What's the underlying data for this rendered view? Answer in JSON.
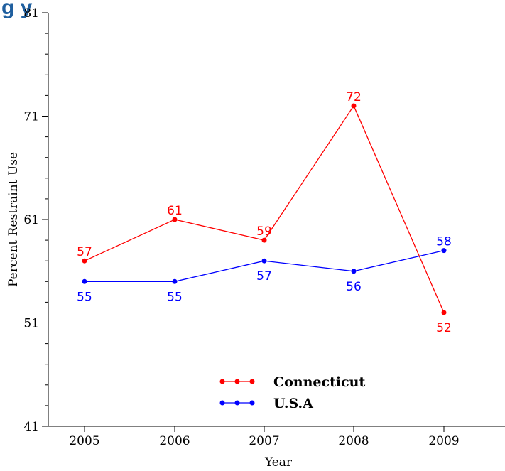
{
  "chart_data": {
    "type": "line",
    "title_partial": "g              y",
    "xlabel": "Year",
    "ylabel": "Percent Restraint Use",
    "x": [
      "2005",
      "2006",
      "2007",
      "2008",
      "2009"
    ],
    "y_ticks": [
      "41",
      "51",
      "61",
      "71",
      "81"
    ],
    "ylim": [
      41,
      81
    ],
    "y_minor_step": 2,
    "grid": false,
    "legend_position": "bottom-center",
    "series": [
      {
        "name": "Connecticut",
        "color": "#ff0000",
        "values": [
          57,
          61,
          59,
          72,
          52
        ],
        "labels": [
          "57",
          "61",
          "59",
          "72",
          "52"
        ],
        "label_positions": [
          "above",
          "above",
          "above",
          "above",
          "below"
        ]
      },
      {
        "name": "U.S.A",
        "color": "#0000ff",
        "values": [
          55,
          55,
          57,
          56,
          58
        ],
        "labels": [
          "55",
          "55",
          "57",
          "56",
          "58"
        ],
        "label_positions": [
          "below",
          "below",
          "below",
          "below",
          "above"
        ]
      }
    ]
  }
}
